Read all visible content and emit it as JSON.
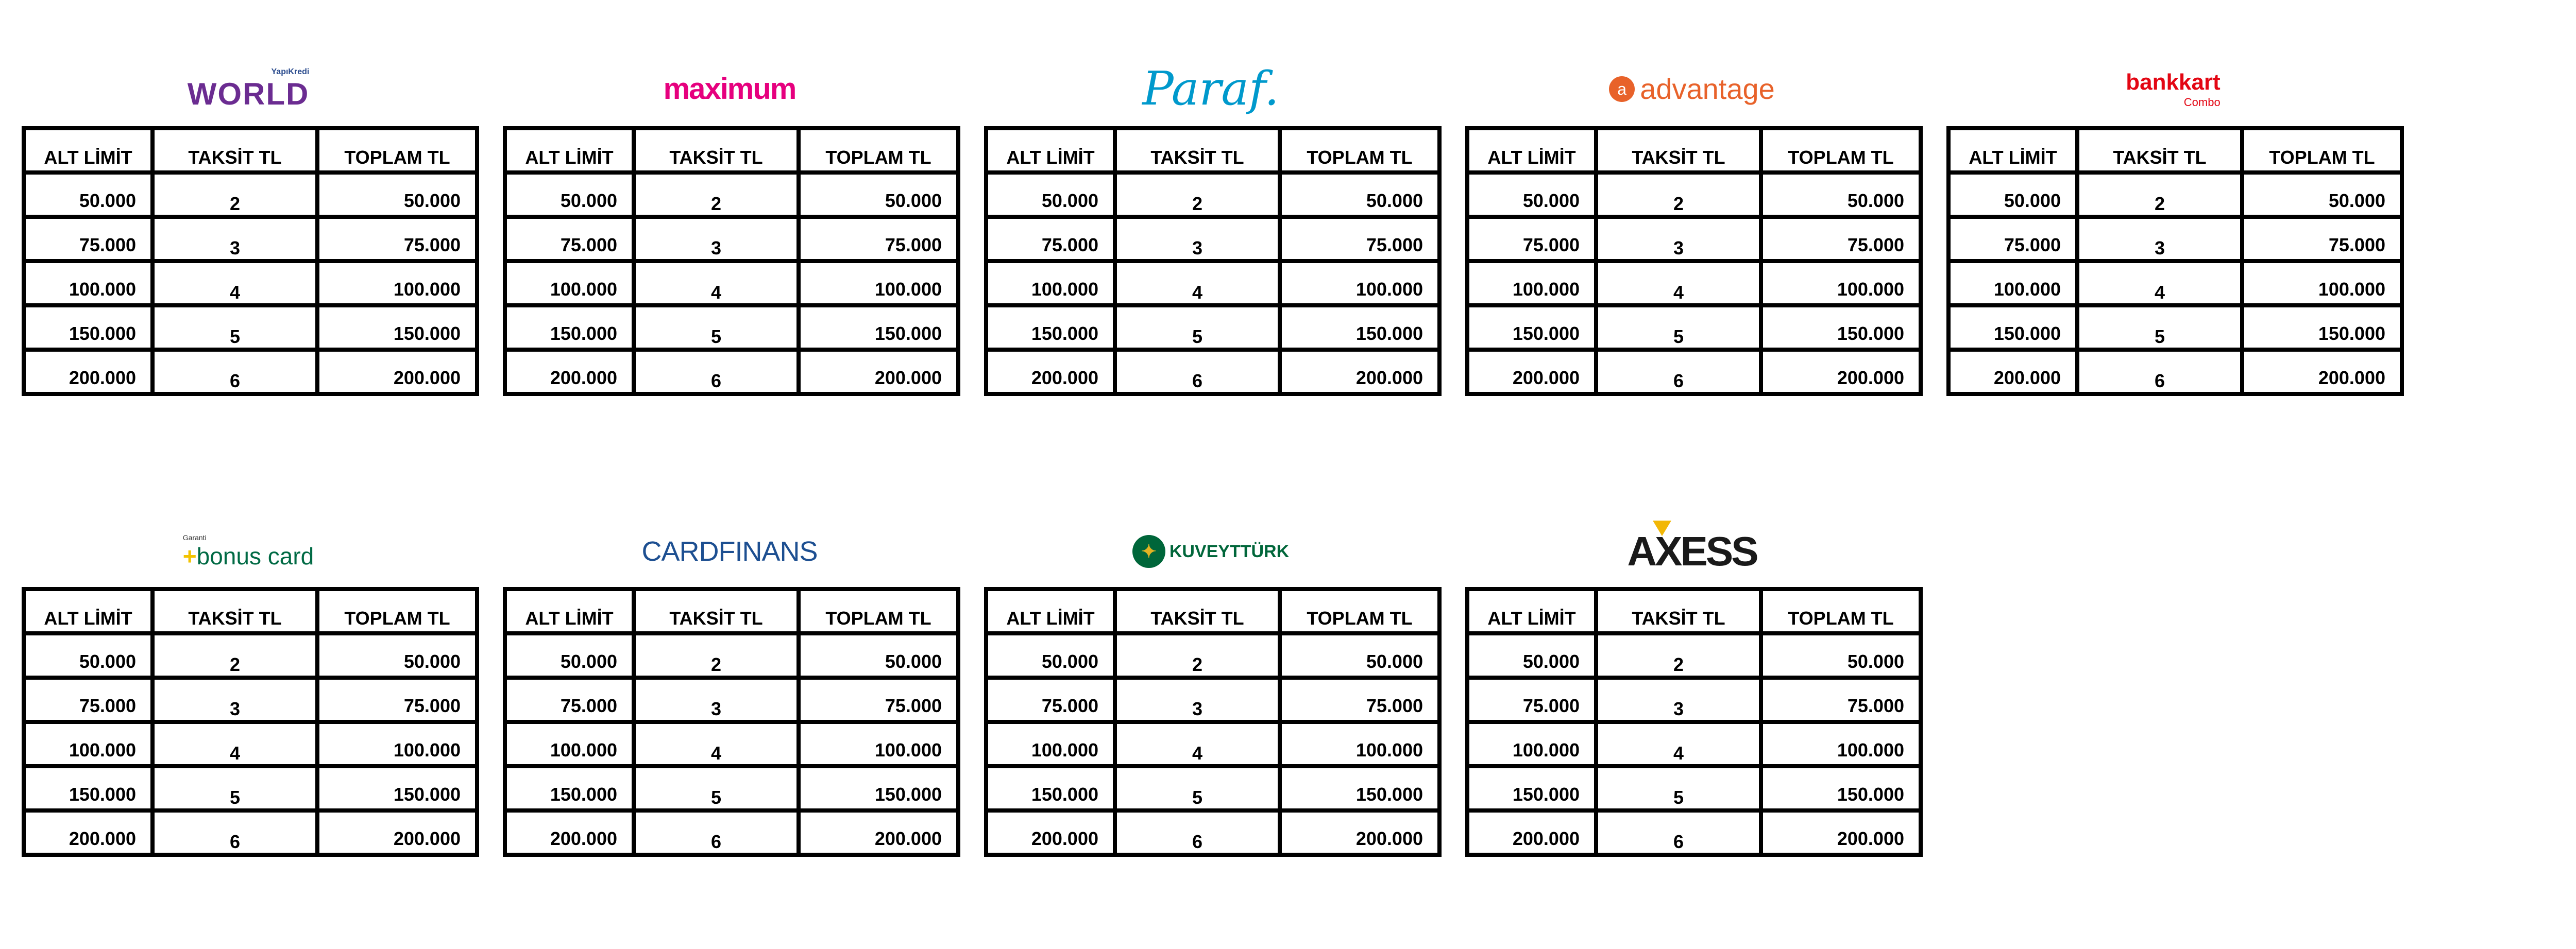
{
  "headers": [
    "ALT LİMİT",
    "TAKSİT TL",
    "TOPLAM TL"
  ],
  "rows": [
    [
      "50.000",
      "2",
      "50.000"
    ],
    [
      "75.000",
      "3",
      "75.000"
    ],
    [
      "100.000",
      "4",
      "100.000"
    ],
    [
      "150.000",
      "5",
      "150.000"
    ],
    [
      "200.000",
      "6",
      "200.000"
    ]
  ],
  "cards": [
    {
      "name": "World",
      "logo_text": "WORLD",
      "logo_sub": "YapıKredi",
      "color": "#6b2c91"
    },
    {
      "name": "Maximum",
      "logo_text": "maximum",
      "color": "#e6007e"
    },
    {
      "name": "Paraf",
      "logo_text": "Paraf.",
      "color": "#0099cc"
    },
    {
      "name": "Advantage",
      "logo_text": "advantage",
      "color": "#e8622a"
    },
    {
      "name": "Bankkart Combo",
      "logo_text": "bankkart",
      "logo_sub": "Combo",
      "color": "#e30613"
    },
    {
      "name": "Bonus Card",
      "logo_text": "bonus card",
      "logo_sub": "Garanti",
      "color": "#006a44"
    },
    {
      "name": "CardFinans",
      "logo_text": "CARDFINANS",
      "color": "#1d4f91"
    },
    {
      "name": "KuveytTürk",
      "logo_text": "KUVEYTTÜRK",
      "color": "#00663a"
    },
    {
      "name": "Axess",
      "logo_text": "AXESS",
      "color": "#1a1a1a"
    }
  ]
}
